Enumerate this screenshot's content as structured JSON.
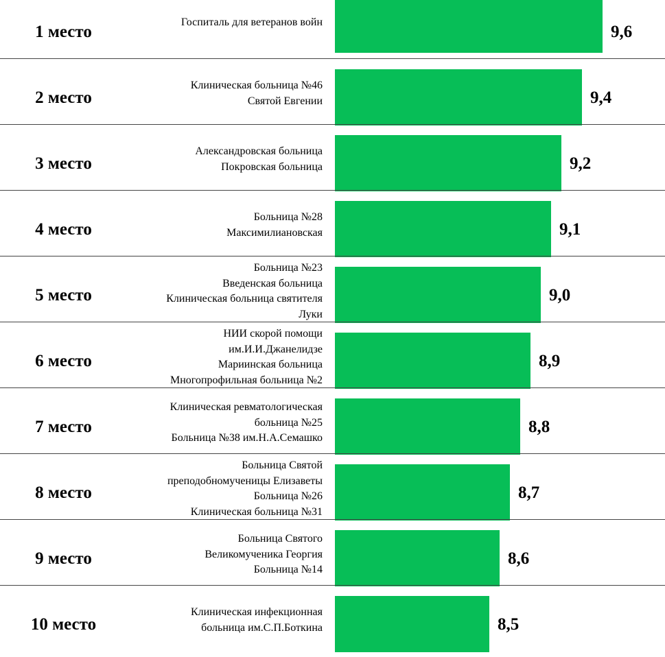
{
  "chart_data": {
    "type": "bar",
    "orientation": "horizontal",
    "bar_color": "#07BE57",
    "rows": [
      {
        "place": "1 место",
        "names": [
          "Госпиталь для ветеранов войн"
        ],
        "value": 9.6,
        "value_label": "9,6"
      },
      {
        "place": "2 место",
        "names": [
          "Клиническая больница №46",
          "Святой Евгении"
        ],
        "value": 9.4,
        "value_label": "9,4"
      },
      {
        "place": "3 место",
        "names": [
          "Александровская больница",
          "Покровская больница"
        ],
        "value": 9.2,
        "value_label": "9,2"
      },
      {
        "place": "4 место",
        "names": [
          "Больница №28",
          "Максимилиановская"
        ],
        "value": 9.1,
        "value_label": "9,1"
      },
      {
        "place": "5 место",
        "names": [
          "Больница №23",
          "Введенская больница",
          "Клиническая больница святителя",
          "Луки"
        ],
        "value": 9.0,
        "value_label": "9,0"
      },
      {
        "place": "6 место",
        "names": [
          "НИИ скорой помощи",
          "им.И.И.Джанелидзе",
          "Мариинская больница",
          "Многопрофильная больница №2"
        ],
        "value": 8.9,
        "value_label": "8,9"
      },
      {
        "place": "7 место",
        "names": [
          "Клиническая ревматологическая",
          "больница №25",
          "Больница №38 им.Н.А.Семашко"
        ],
        "value": 8.8,
        "value_label": "8,8"
      },
      {
        "place": "8 место",
        "names": [
          "Больница Святой",
          "преподобномученицы Елизаветы",
          "Больница №26",
          "Клиническая больница №31"
        ],
        "value": 8.7,
        "value_label": "8,7"
      },
      {
        "place": "9 место",
        "names": [
          "Больница Святого",
          "Великомученика Георгия",
          "Больница №14"
        ],
        "value": 8.6,
        "value_label": "8,6"
      },
      {
        "place": "10 место",
        "names": [
          "Клиническая инфекционная",
          "больница им.С.П.Боткина"
        ],
        "value": 8.5,
        "value_label": "8,5"
      }
    ]
  }
}
